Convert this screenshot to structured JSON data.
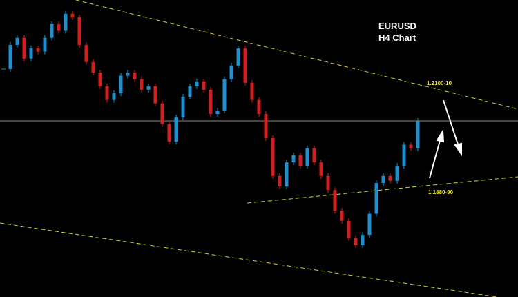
{
  "chart_data": {
    "type": "candlestick",
    "title": "EURUSD",
    "subtitle": "H4 Chart",
    "annotations": [
      "1.2100-10",
      "1.1880-90"
    ],
    "up_color": "#1f8fd0",
    "down_color": "#d02020",
    "ylim": [
      1.1621,
      1.2296
    ],
    "closes": [
      1.2139,
      1.2194,
      1.221,
      1.2163,
      1.2186,
      1.2179,
      1.221,
      1.2241,
      1.2226,
      1.2265,
      1.2257,
      1.2194,
      1.2155,
      1.2131,
      1.21,
      1.2069,
      1.2084,
      1.2124,
      1.2131,
      1.2116,
      1.2092,
      1.21,
      1.2061,
      1.2014,
      1.1974,
      1.2029,
      1.2076,
      1.21,
      1.2111,
      1.2092,
      1.2037,
      1.2045,
      1.2116,
      1.2147,
      1.2186,
      1.2108,
      1.2069,
      1.2037,
      1.1982,
      1.1896,
      1.1872,
      1.1927,
      1.1943,
      1.1919,
      1.1959,
      1.1927,
      1.1896,
      1.1864,
      1.1817,
      1.1794,
      1.1755,
      1.1739,
      1.1762,
      1.181,
      1.188,
      1.1896,
      1.1885,
      1.1919,
      1.1967,
      1.1959,
      1.2021
    ]
  }
}
